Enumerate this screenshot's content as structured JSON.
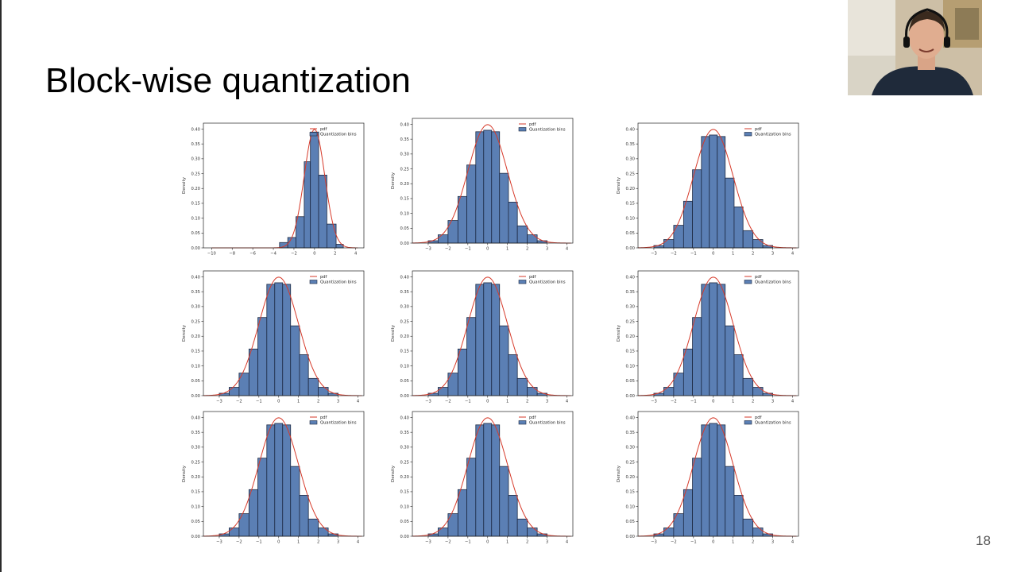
{
  "slide": {
    "title": "Block-wise quantization",
    "page_number": "18"
  },
  "webcam": {
    "icon": "presenter-webcam-icon"
  },
  "colors": {
    "bar_fill": "#5b7fb4",
    "bar_edge": "#1e2a44",
    "pdf_line": "#d63a2a"
  },
  "chart_data": [
    {
      "type": "bar",
      "ylabel": "Density",
      "legend": [
        "pdf",
        "Quantization bins"
      ],
      "legend_position": "top-right",
      "xlim": [
        -10.8,
        4.8
      ],
      "ylim": [
        0,
        0.42
      ],
      "xticks": [
        -10,
        -8,
        -6,
        -4,
        -2,
        0,
        2,
        4
      ],
      "yticks": [
        0.0,
        0.05,
        0.1,
        0.15,
        0.2,
        0.25,
        0.3,
        0.35,
        0.4
      ],
      "ytick_labels": [
        "0.00",
        "0.05",
        "0.10",
        "0.15",
        "0.20",
        "0.25",
        "0.30",
        "0.35",
        "0.40"
      ],
      "xtick_labels": [
        "−10",
        "−8",
        "−6",
        "−4",
        "−2",
        "0",
        "2",
        "4"
      ],
      "bins": [
        {
          "x0": -3.4,
          "x1": -2.6,
          "value": 0.018
        },
        {
          "x0": -2.6,
          "x1": -1.8,
          "value": 0.035
        },
        {
          "x0": -1.8,
          "x1": -1.0,
          "value": 0.105
        },
        {
          "x0": -1.0,
          "x1": -0.4,
          "value": 0.29
        },
        {
          "x0": -0.4,
          "x1": 0.4,
          "value": 0.39
        },
        {
          "x0": 0.4,
          "x1": 1.2,
          "value": 0.245
        },
        {
          "x0": 1.2,
          "x1": 2.1,
          "value": 0.08
        },
        {
          "x0": 2.1,
          "x1": 2.8,
          "value": 0.012
        }
      ]
    },
    {
      "type": "bar",
      "ylabel": "Density",
      "legend": [
        "pdf",
        "Quantization bins"
      ],
      "legend_position": "top-right",
      "xlim": [
        -3.8,
        4.3
      ],
      "ylim": [
        0,
        0.42
      ],
      "xticks": [
        -3,
        -2,
        -1,
        0,
        1,
        2,
        3,
        4
      ],
      "xtick_labels": [
        "−3",
        "−2",
        "−1",
        "0",
        "1",
        "2",
        "3",
        "4"
      ],
      "yticks": [
        0.0,
        0.05,
        0.1,
        0.15,
        0.2,
        0.25,
        0.3,
        0.35,
        0.4
      ],
      "ytick_labels": [
        "0.00",
        "0.05",
        "0.10",
        "0.15",
        "0.20",
        "0.25",
        "0.30",
        "0.35",
        "0.40"
      ],
      "bins": [
        {
          "x0": -3.0,
          "x1": -2.5,
          "value": 0.008
        },
        {
          "x0": -2.5,
          "x1": -2.0,
          "value": 0.028
        },
        {
          "x0": -2.0,
          "x1": -1.5,
          "value": 0.076
        },
        {
          "x0": -1.5,
          "x1": -1.05,
          "value": 0.157
        },
        {
          "x0": -1.05,
          "x1": -0.6,
          "value": 0.263
        },
        {
          "x0": -0.6,
          "x1": -0.2,
          "value": 0.375
        },
        {
          "x0": -0.2,
          "x1": 0.2,
          "value": 0.38
        },
        {
          "x0": 0.2,
          "x1": 0.6,
          "value": 0.375
        },
        {
          "x0": 0.6,
          "x1": 1.05,
          "value": 0.235
        },
        {
          "x0": 1.05,
          "x1": 1.5,
          "value": 0.138
        },
        {
          "x0": 1.5,
          "x1": 2.0,
          "value": 0.058
        },
        {
          "x0": 2.0,
          "x1": 2.5,
          "value": 0.028
        },
        {
          "x0": 2.5,
          "x1": 3.0,
          "value": 0.008
        }
      ]
    },
    {
      "type": "bar",
      "ylabel": "Density",
      "legend": [
        "pdf",
        "Quantization bins"
      ],
      "legend_position": "top-right",
      "xlim": [
        -3.8,
        4.3
      ],
      "ylim": [
        0,
        0.42
      ],
      "xticks": [
        -3,
        -2,
        -1,
        0,
        1,
        2,
        3,
        4
      ],
      "xtick_labels": [
        "−3",
        "−2",
        "−1",
        "0",
        "1",
        "2",
        "3",
        "4"
      ],
      "yticks": [
        0.0,
        0.05,
        0.1,
        0.15,
        0.2,
        0.25,
        0.3,
        0.35,
        0.4
      ],
      "ytick_labels": [
        "0.00",
        "0.05",
        "0.10",
        "0.15",
        "0.20",
        "0.25",
        "0.30",
        "0.35",
        "0.40"
      ],
      "bins": [
        {
          "x0": -3.0,
          "x1": -2.5,
          "value": 0.008
        },
        {
          "x0": -2.5,
          "x1": -2.0,
          "value": 0.028
        },
        {
          "x0": -2.0,
          "x1": -1.5,
          "value": 0.076
        },
        {
          "x0": -1.5,
          "x1": -1.05,
          "value": 0.157
        },
        {
          "x0": -1.05,
          "x1": -0.6,
          "value": 0.263
        },
        {
          "x0": -0.6,
          "x1": -0.2,
          "value": 0.375
        },
        {
          "x0": -0.2,
          "x1": 0.2,
          "value": 0.38
        },
        {
          "x0": 0.2,
          "x1": 0.6,
          "value": 0.375
        },
        {
          "x0": 0.6,
          "x1": 1.05,
          "value": 0.235
        },
        {
          "x0": 1.05,
          "x1": 1.5,
          "value": 0.138
        },
        {
          "x0": 1.5,
          "x1": 2.0,
          "value": 0.058
        },
        {
          "x0": 2.0,
          "x1": 2.5,
          "value": 0.028
        },
        {
          "x0": 2.5,
          "x1": 3.0,
          "value": 0.008
        }
      ]
    },
    {
      "type": "bar",
      "ylabel": "Density",
      "legend": [
        "pdf",
        "Quantization bins"
      ],
      "legend_position": "top-right",
      "xlim": [
        -3.8,
        4.3
      ],
      "ylim": [
        0,
        0.42
      ],
      "xticks": [
        -3,
        -2,
        -1,
        0,
        1,
        2,
        3,
        4
      ],
      "xtick_labels": [
        "−3",
        "−2",
        "−1",
        "0",
        "1",
        "2",
        "3",
        "4"
      ],
      "yticks": [
        0.0,
        0.05,
        0.1,
        0.15,
        0.2,
        0.25,
        0.3,
        0.35,
        0.4
      ],
      "ytick_labels": [
        "0.00",
        "0.05",
        "0.10",
        "0.15",
        "0.20",
        "0.25",
        "0.30",
        "0.35",
        "0.40"
      ],
      "bins": [
        {
          "x0": -3.0,
          "x1": -2.5,
          "value": 0.008
        },
        {
          "x0": -2.5,
          "x1": -2.0,
          "value": 0.028
        },
        {
          "x0": -2.0,
          "x1": -1.5,
          "value": 0.076
        },
        {
          "x0": -1.5,
          "x1": -1.05,
          "value": 0.157
        },
        {
          "x0": -1.05,
          "x1": -0.6,
          "value": 0.263
        },
        {
          "x0": -0.6,
          "x1": -0.2,
          "value": 0.375
        },
        {
          "x0": -0.2,
          "x1": 0.2,
          "value": 0.38
        },
        {
          "x0": 0.2,
          "x1": 0.6,
          "value": 0.375
        },
        {
          "x0": 0.6,
          "x1": 1.05,
          "value": 0.235
        },
        {
          "x0": 1.05,
          "x1": 1.5,
          "value": 0.138
        },
        {
          "x0": 1.5,
          "x1": 2.0,
          "value": 0.058
        },
        {
          "x0": 2.0,
          "x1": 2.5,
          "value": 0.028
        },
        {
          "x0": 2.5,
          "x1": 3.0,
          "value": 0.008
        }
      ]
    },
    {
      "type": "bar",
      "ylabel": "Density",
      "legend": [
        "pdf",
        "Quantization bins"
      ],
      "legend_position": "top-right",
      "xlim": [
        -3.8,
        4.3
      ],
      "ylim": [
        0,
        0.42
      ],
      "xticks": [
        -3,
        -2,
        -1,
        0,
        1,
        2,
        3,
        4
      ],
      "xtick_labels": [
        "−3",
        "−2",
        "−1",
        "0",
        "1",
        "2",
        "3",
        "4"
      ],
      "yticks": [
        0.0,
        0.05,
        0.1,
        0.15,
        0.2,
        0.25,
        0.3,
        0.35,
        0.4
      ],
      "ytick_labels": [
        "0.00",
        "0.05",
        "0.10",
        "0.15",
        "0.20",
        "0.25",
        "0.30",
        "0.35",
        "0.40"
      ],
      "bins": [
        {
          "x0": -3.0,
          "x1": -2.5,
          "value": 0.008
        },
        {
          "x0": -2.5,
          "x1": -2.0,
          "value": 0.028
        },
        {
          "x0": -2.0,
          "x1": -1.5,
          "value": 0.076
        },
        {
          "x0": -1.5,
          "x1": -1.05,
          "value": 0.157
        },
        {
          "x0": -1.05,
          "x1": -0.6,
          "value": 0.263
        },
        {
          "x0": -0.6,
          "x1": -0.2,
          "value": 0.375
        },
        {
          "x0": -0.2,
          "x1": 0.2,
          "value": 0.38
        },
        {
          "x0": 0.2,
          "x1": 0.6,
          "value": 0.375
        },
        {
          "x0": 0.6,
          "x1": 1.05,
          "value": 0.235
        },
        {
          "x0": 1.05,
          "x1": 1.5,
          "value": 0.138
        },
        {
          "x0": 1.5,
          "x1": 2.0,
          "value": 0.058
        },
        {
          "x0": 2.0,
          "x1": 2.5,
          "value": 0.028
        },
        {
          "x0": 2.5,
          "x1": 3.0,
          "value": 0.008
        }
      ]
    },
    {
      "type": "bar",
      "ylabel": "Density",
      "legend": [
        "pdf",
        "Quantization bins"
      ],
      "legend_position": "top-right",
      "xlim": [
        -3.8,
        4.3
      ],
      "ylim": [
        0,
        0.42
      ],
      "xticks": [
        -3,
        -2,
        -1,
        0,
        1,
        2,
        3,
        4
      ],
      "xtick_labels": [
        "−3",
        "−2",
        "−1",
        "0",
        "1",
        "2",
        "3",
        "4"
      ],
      "yticks": [
        0.0,
        0.05,
        0.1,
        0.15,
        0.2,
        0.25,
        0.3,
        0.35,
        0.4
      ],
      "ytick_labels": [
        "0.00",
        "0.05",
        "0.10",
        "0.15",
        "0.20",
        "0.25",
        "0.30",
        "0.35",
        "0.40"
      ],
      "bins": [
        {
          "x0": -3.0,
          "x1": -2.5,
          "value": 0.008
        },
        {
          "x0": -2.5,
          "x1": -2.0,
          "value": 0.028
        },
        {
          "x0": -2.0,
          "x1": -1.5,
          "value": 0.076
        },
        {
          "x0": -1.5,
          "x1": -1.05,
          "value": 0.157
        },
        {
          "x0": -1.05,
          "x1": -0.6,
          "value": 0.263
        },
        {
          "x0": -0.6,
          "x1": -0.2,
          "value": 0.375
        },
        {
          "x0": -0.2,
          "x1": 0.2,
          "value": 0.38
        },
        {
          "x0": 0.2,
          "x1": 0.6,
          "value": 0.375
        },
        {
          "x0": 0.6,
          "x1": 1.05,
          "value": 0.235
        },
        {
          "x0": 1.05,
          "x1": 1.5,
          "value": 0.138
        },
        {
          "x0": 1.5,
          "x1": 2.0,
          "value": 0.058
        },
        {
          "x0": 2.0,
          "x1": 2.5,
          "value": 0.028
        },
        {
          "x0": 2.5,
          "x1": 3.0,
          "value": 0.008
        }
      ]
    },
    {
      "type": "bar",
      "ylabel": "Density",
      "legend": [
        "pdf",
        "Quantization bins"
      ],
      "legend_position": "top-right",
      "xlim": [
        -3.8,
        4.3
      ],
      "ylim": [
        0,
        0.42
      ],
      "xticks": [
        -3,
        -2,
        -1,
        0,
        1,
        2,
        3,
        4
      ],
      "xtick_labels": [
        "−3",
        "−2",
        "−1",
        "0",
        "1",
        "2",
        "3",
        "4"
      ],
      "yticks": [
        0.0,
        0.05,
        0.1,
        0.15,
        0.2,
        0.25,
        0.3,
        0.35,
        0.4
      ],
      "ytick_labels": [
        "0.00",
        "0.05",
        "0.10",
        "0.15",
        "0.20",
        "0.25",
        "0.30",
        "0.35",
        "0.40"
      ],
      "bins": [
        {
          "x0": -3.0,
          "x1": -2.5,
          "value": 0.008
        },
        {
          "x0": -2.5,
          "x1": -2.0,
          "value": 0.028
        },
        {
          "x0": -2.0,
          "x1": -1.5,
          "value": 0.076
        },
        {
          "x0": -1.5,
          "x1": -1.05,
          "value": 0.157
        },
        {
          "x0": -1.05,
          "x1": -0.6,
          "value": 0.263
        },
        {
          "x0": -0.6,
          "x1": -0.2,
          "value": 0.375
        },
        {
          "x0": -0.2,
          "x1": 0.2,
          "value": 0.38
        },
        {
          "x0": 0.2,
          "x1": 0.6,
          "value": 0.375
        },
        {
          "x0": 0.6,
          "x1": 1.05,
          "value": 0.235
        },
        {
          "x0": 1.05,
          "x1": 1.5,
          "value": 0.138
        },
        {
          "x0": 1.5,
          "x1": 2.0,
          "value": 0.058
        },
        {
          "x0": 2.0,
          "x1": 2.5,
          "value": 0.028
        },
        {
          "x0": 2.5,
          "x1": 3.0,
          "value": 0.008
        }
      ]
    },
    {
      "type": "bar",
      "ylabel": "Density",
      "legend": [
        "pdf",
        "Quantization bins"
      ],
      "legend_position": "top-right",
      "xlim": [
        -3.8,
        4.3
      ],
      "ylim": [
        0,
        0.42
      ],
      "xticks": [
        -3,
        -2,
        -1,
        0,
        1,
        2,
        3,
        4
      ],
      "xtick_labels": [
        "−3",
        "−2",
        "−1",
        "0",
        "1",
        "2",
        "3",
        "4"
      ],
      "yticks": [
        0.0,
        0.05,
        0.1,
        0.15,
        0.2,
        0.25,
        0.3,
        0.35,
        0.4
      ],
      "ytick_labels": [
        "0.00",
        "0.05",
        "0.10",
        "0.15",
        "0.20",
        "0.25",
        "0.30",
        "0.35",
        "0.40"
      ],
      "bins": [
        {
          "x0": -3.0,
          "x1": -2.5,
          "value": 0.008
        },
        {
          "x0": -2.5,
          "x1": -2.0,
          "value": 0.028
        },
        {
          "x0": -2.0,
          "x1": -1.5,
          "value": 0.076
        },
        {
          "x0": -1.5,
          "x1": -1.05,
          "value": 0.157
        },
        {
          "x0": -1.05,
          "x1": -0.6,
          "value": 0.263
        },
        {
          "x0": -0.6,
          "x1": -0.2,
          "value": 0.375
        },
        {
          "x0": -0.2,
          "x1": 0.2,
          "value": 0.38
        },
        {
          "x0": 0.2,
          "x1": 0.6,
          "value": 0.375
        },
        {
          "x0": 0.6,
          "x1": 1.05,
          "value": 0.235
        },
        {
          "x0": 1.05,
          "x1": 1.5,
          "value": 0.138
        },
        {
          "x0": 1.5,
          "x1": 2.0,
          "value": 0.058
        },
        {
          "x0": 2.0,
          "x1": 2.5,
          "value": 0.028
        },
        {
          "x0": 2.5,
          "x1": 3.0,
          "value": 0.008
        }
      ]
    },
    {
      "type": "bar",
      "ylabel": "Density",
      "legend": [
        "pdf",
        "Quantization bins"
      ],
      "legend_position": "top-right",
      "xlim": [
        -3.8,
        4.3
      ],
      "ylim": [
        0,
        0.42
      ],
      "xticks": [
        -3,
        -2,
        -1,
        0,
        1,
        2,
        3,
        4
      ],
      "xtick_labels": [
        "−3",
        "−2",
        "−1",
        "0",
        "1",
        "2",
        "3",
        "4"
      ],
      "yticks": [
        0.0,
        0.05,
        0.1,
        0.15,
        0.2,
        0.25,
        0.3,
        0.35,
        0.4
      ],
      "ytick_labels": [
        "0.00",
        "0.05",
        "0.10",
        "0.15",
        "0.20",
        "0.25",
        "0.30",
        "0.35",
        "0.40"
      ],
      "bins": [
        {
          "x0": -3.0,
          "x1": -2.5,
          "value": 0.008
        },
        {
          "x0": -2.5,
          "x1": -2.0,
          "value": 0.028
        },
        {
          "x0": -2.0,
          "x1": -1.5,
          "value": 0.076
        },
        {
          "x0": -1.5,
          "x1": -1.05,
          "value": 0.157
        },
        {
          "x0": -1.05,
          "x1": -0.6,
          "value": 0.263
        },
        {
          "x0": -0.6,
          "x1": -0.2,
          "value": 0.375
        },
        {
          "x0": -0.2,
          "x1": 0.2,
          "value": 0.38
        },
        {
          "x0": 0.2,
          "x1": 0.6,
          "value": 0.375
        },
        {
          "x0": 0.6,
          "x1": 1.05,
          "value": 0.235
        },
        {
          "x0": 1.05,
          "x1": 1.5,
          "value": 0.138
        },
        {
          "x0": 1.5,
          "x1": 2.0,
          "value": 0.058
        },
        {
          "x0": 2.0,
          "x1": 2.5,
          "value": 0.028
        },
        {
          "x0": 2.5,
          "x1": 3.0,
          "value": 0.008
        }
      ]
    }
  ]
}
